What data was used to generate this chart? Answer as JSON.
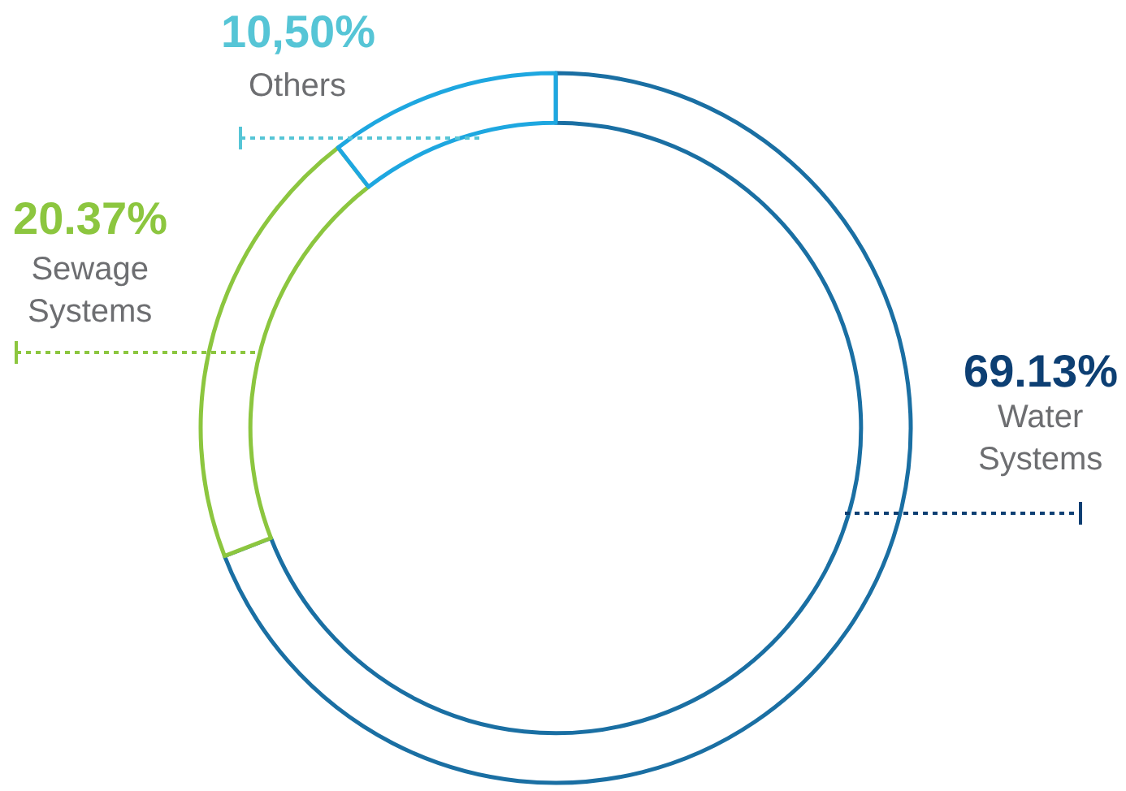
{
  "chart_data": {
    "type": "donut",
    "categories": [
      "Water Systems",
      "Sewage Systems",
      "Others"
    ],
    "values": [
      69.13,
      20.37,
      10.5
    ],
    "colors": [
      "#1a6fa3",
      "#8cc63f",
      "#1ea7e0"
    ],
    "value_labels": [
      "69.13%",
      "20.37%",
      "10,50%"
    ],
    "legend": false
  }
}
